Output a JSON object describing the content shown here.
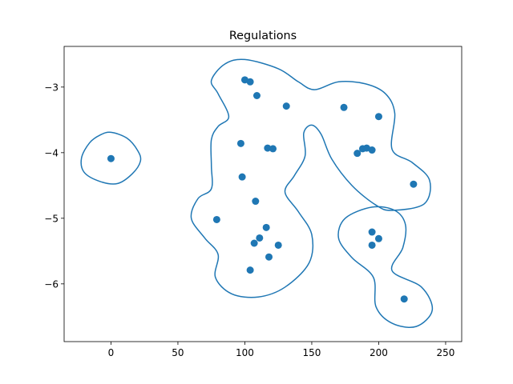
{
  "chart_data": {
    "type": "scatter",
    "title": "Regulations",
    "xlabel": "",
    "ylabel": "",
    "xlim": [
      -35,
      262
    ],
    "ylim": [
      -6.88,
      -2.38
    ],
    "xticks": [
      0,
      50,
      100,
      150,
      200,
      250
    ],
    "xtick_labels": [
      "0",
      "50",
      "100",
      "150",
      "200",
      "250"
    ],
    "yticks": [
      -3,
      -4,
      -5,
      -6
    ],
    "ytick_labels": [
      "−3",
      "−4",
      "−5",
      "−6"
    ],
    "grid": false,
    "point_color": "#1f77b4",
    "contour_color": "#1f77b4",
    "points": [
      {
        "x": 0,
        "y": -4.09
      },
      {
        "x": 100,
        "y": -2.89
      },
      {
        "x": 104,
        "y": -2.92
      },
      {
        "x": 109,
        "y": -3.13
      },
      {
        "x": 131,
        "y": -3.29
      },
      {
        "x": 174,
        "y": -3.31
      },
      {
        "x": 200,
        "y": -3.45
      },
      {
        "x": 97,
        "y": -3.86
      },
      {
        "x": 117,
        "y": -3.93
      },
      {
        "x": 121,
        "y": -3.94
      },
      {
        "x": 184,
        "y": -4.01
      },
      {
        "x": 188,
        "y": -3.94
      },
      {
        "x": 191,
        "y": -3.93
      },
      {
        "x": 195,
        "y": -3.96
      },
      {
        "x": 98,
        "y": -4.37
      },
      {
        "x": 226,
        "y": -4.48
      },
      {
        "x": 108,
        "y": -4.74
      },
      {
        "x": 79,
        "y": -5.02
      },
      {
        "x": 116,
        "y": -5.14
      },
      {
        "x": 111,
        "y": -5.3
      },
      {
        "x": 107,
        "y": -5.38
      },
      {
        "x": 125,
        "y": -5.41
      },
      {
        "x": 195,
        "y": -5.21
      },
      {
        "x": 200,
        "y": -5.31
      },
      {
        "x": 195,
        "y": -5.41
      },
      {
        "x": 118,
        "y": -5.59
      },
      {
        "x": 104,
        "y": -5.79
      },
      {
        "x": 219,
        "y": -6.23
      }
    ],
    "contours": [
      [
        [
          0,
          -3.69
        ],
        [
          12,
          -3.78
        ],
        [
          20,
          -3.97
        ],
        [
          22,
          -4.13
        ],
        [
          16,
          -4.32
        ],
        [
          5,
          -4.47
        ],
        [
          -8,
          -4.44
        ],
        [
          -20,
          -4.3
        ],
        [
          -22,
          -4.08
        ],
        [
          -16,
          -3.85
        ],
        [
          -8,
          -3.73
        ],
        [
          0,
          -3.69
        ]
      ],
      [
        [
          100,
          -2.58
        ],
        [
          125,
          -2.72
        ],
        [
          140,
          -2.92
        ],
        [
          152,
          -3.04
        ],
        [
          170,
          -2.92
        ],
        [
          190,
          -2.95
        ],
        [
          205,
          -3.1
        ],
        [
          212,
          -3.4
        ],
        [
          210,
          -3.95
        ],
        [
          225,
          -4.15
        ],
        [
          238,
          -4.42
        ],
        [
          234,
          -4.78
        ],
        [
          210,
          -4.88
        ],
        [
          198,
          -4.8
        ],
        [
          180,
          -4.5
        ],
        [
          165,
          -4.1
        ],
        [
          157,
          -3.72
        ],
        [
          150,
          -3.58
        ],
        [
          144,
          -3.7
        ],
        [
          145,
          -4.05
        ],
        [
          137,
          -4.35
        ],
        [
          130,
          -4.6
        ],
        [
          140,
          -4.9
        ],
        [
          150,
          -5.25
        ],
        [
          148,
          -5.68
        ],
        [
          130,
          -6.05
        ],
        [
          110,
          -6.2
        ],
        [
          90,
          -6.15
        ],
        [
          78,
          -5.9
        ],
        [
          80,
          -5.55
        ],
        [
          70,
          -5.3
        ],
        [
          60,
          -5.0
        ],
        [
          65,
          -4.7
        ],
        [
          75,
          -4.55
        ],
        [
          75,
          -4.2
        ],
        [
          75,
          -3.8
        ],
        [
          80,
          -3.6
        ],
        [
          88,
          -3.45
        ],
        [
          80,
          -3.1
        ],
        [
          75,
          -2.9
        ],
        [
          85,
          -2.65
        ],
        [
          100,
          -2.58
        ]
      ],
      [
        [
          195,
          -4.83
        ],
        [
          212,
          -4.88
        ],
        [
          220,
          -5.1
        ],
        [
          218,
          -5.45
        ],
        [
          210,
          -5.8
        ],
        [
          232,
          -6.05
        ],
        [
          240,
          -6.4
        ],
        [
          228,
          -6.65
        ],
        [
          210,
          -6.6
        ],
        [
          198,
          -6.35
        ],
        [
          196,
          -5.9
        ],
        [
          180,
          -5.6
        ],
        [
          170,
          -5.3
        ],
        [
          175,
          -5.0
        ],
        [
          195,
          -4.83
        ]
      ]
    ]
  }
}
